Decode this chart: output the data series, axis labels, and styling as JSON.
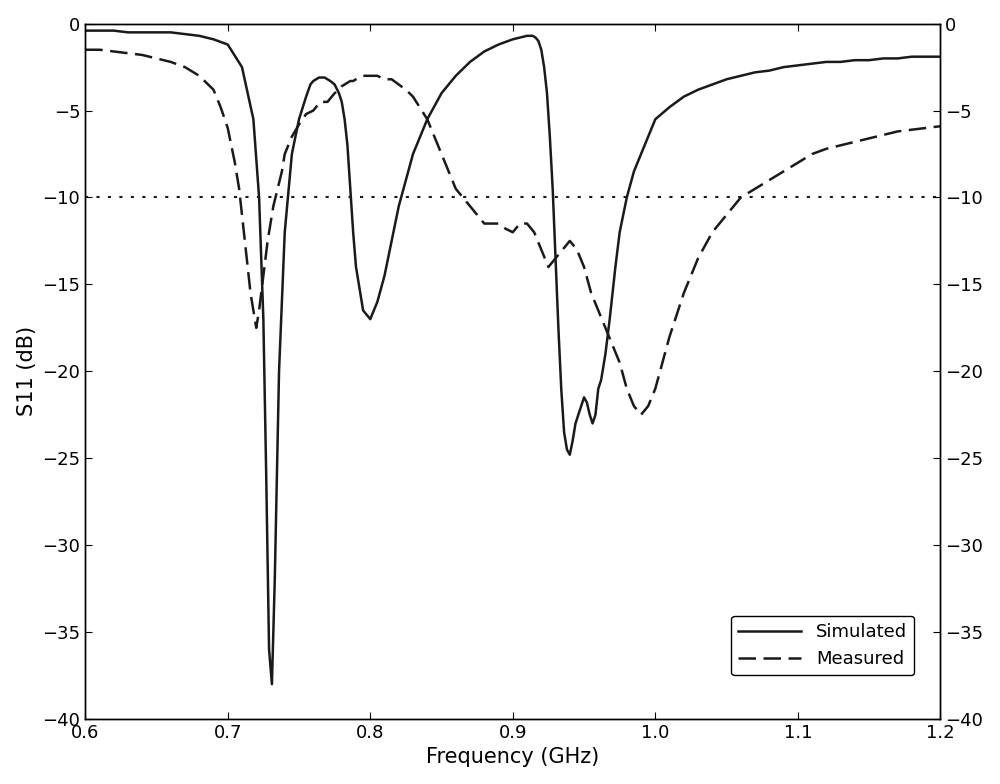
{
  "xlim": [
    0.6,
    1.2
  ],
  "ylim": [
    -40,
    0
  ],
  "xlabel": "Frequency (GHz)",
  "ylabel": "S11 (dB)",
  "hline_y": -10,
  "legend_labels": [
    "Simulated",
    "Measured"
  ],
  "simulated_x": [
    0.6,
    0.61,
    0.62,
    0.63,
    0.64,
    0.65,
    0.66,
    0.67,
    0.68,
    0.69,
    0.7,
    0.71,
    0.718,
    0.722,
    0.725,
    0.727,
    0.729,
    0.731,
    0.733,
    0.736,
    0.74,
    0.745,
    0.75,
    0.755,
    0.758,
    0.76,
    0.762,
    0.764,
    0.766,
    0.768,
    0.77,
    0.772,
    0.775,
    0.778,
    0.78,
    0.782,
    0.784,
    0.786,
    0.788,
    0.79,
    0.795,
    0.8,
    0.805,
    0.81,
    0.815,
    0.82,
    0.83,
    0.84,
    0.85,
    0.86,
    0.87,
    0.88,
    0.89,
    0.9,
    0.905,
    0.91,
    0.912,
    0.914,
    0.916,
    0.918,
    0.92,
    0.922,
    0.924,
    0.926,
    0.928,
    0.93,
    0.932,
    0.934,
    0.936,
    0.938,
    0.94,
    0.942,
    0.944,
    0.946,
    0.948,
    0.95,
    0.952,
    0.954,
    0.956,
    0.958,
    0.96,
    0.962,
    0.965,
    0.968,
    0.97,
    0.972,
    0.975,
    0.98,
    0.985,
    0.99,
    0.995,
    1.0,
    1.01,
    1.02,
    1.03,
    1.04,
    1.05,
    1.06,
    1.07,
    1.08,
    1.09,
    1.1,
    1.11,
    1.12,
    1.13,
    1.14,
    1.15,
    1.16,
    1.17,
    1.18,
    1.19,
    1.2
  ],
  "simulated_y": [
    -0.4,
    -0.4,
    -0.4,
    -0.5,
    -0.5,
    -0.5,
    -0.5,
    -0.6,
    -0.7,
    -0.9,
    -1.2,
    -2.5,
    -5.5,
    -10.0,
    -17.0,
    -26.0,
    -36.0,
    -38.0,
    -32.0,
    -20.0,
    -12.0,
    -7.5,
    -5.5,
    -4.2,
    -3.5,
    -3.3,
    -3.2,
    -3.1,
    -3.1,
    -3.1,
    -3.2,
    -3.3,
    -3.5,
    -4.0,
    -4.5,
    -5.5,
    -7.0,
    -9.5,
    -12.0,
    -14.0,
    -16.5,
    -17.0,
    -16.0,
    -14.5,
    -12.5,
    -10.5,
    -7.5,
    -5.5,
    -4.0,
    -3.0,
    -2.2,
    -1.6,
    -1.2,
    -0.9,
    -0.8,
    -0.7,
    -0.7,
    -0.7,
    -0.8,
    -1.0,
    -1.5,
    -2.5,
    -4.0,
    -6.5,
    -9.5,
    -13.5,
    -17.5,
    -21.0,
    -23.5,
    -24.5,
    -24.8,
    -24.0,
    -23.0,
    -22.5,
    -22.0,
    -21.5,
    -21.8,
    -22.5,
    -23.0,
    -22.5,
    -21.0,
    -20.5,
    -19.0,
    -17.0,
    -15.5,
    -14.0,
    -12.0,
    -10.0,
    -8.5,
    -7.5,
    -6.5,
    -5.5,
    -4.8,
    -4.2,
    -3.8,
    -3.5,
    -3.2,
    -3.0,
    -2.8,
    -2.7,
    -2.5,
    -2.4,
    -2.3,
    -2.2,
    -2.2,
    -2.1,
    -2.1,
    -2.0,
    -2.0,
    -1.9,
    -1.9,
    -1.9
  ],
  "measured_x": [
    0.6,
    0.61,
    0.62,
    0.63,
    0.64,
    0.65,
    0.66,
    0.67,
    0.68,
    0.69,
    0.695,
    0.7,
    0.705,
    0.708,
    0.71,
    0.712,
    0.714,
    0.716,
    0.718,
    0.72,
    0.722,
    0.725,
    0.728,
    0.73,
    0.732,
    0.735,
    0.738,
    0.74,
    0.745,
    0.75,
    0.755,
    0.76,
    0.765,
    0.77,
    0.775,
    0.778,
    0.78,
    0.782,
    0.784,
    0.786,
    0.788,
    0.79,
    0.795,
    0.8,
    0.805,
    0.81,
    0.815,
    0.82,
    0.825,
    0.83,
    0.84,
    0.85,
    0.86,
    0.87,
    0.875,
    0.88,
    0.885,
    0.89,
    0.895,
    0.9,
    0.905,
    0.91,
    0.915,
    0.92,
    0.925,
    0.93,
    0.935,
    0.94,
    0.945,
    0.95,
    0.955,
    0.96,
    0.965,
    0.97,
    0.975,
    0.98,
    0.985,
    0.99,
    0.995,
    1.0,
    1.005,
    1.01,
    1.02,
    1.03,
    1.04,
    1.05,
    1.06,
    1.07,
    1.08,
    1.09,
    1.1,
    1.11,
    1.12,
    1.13,
    1.14,
    1.15,
    1.16,
    1.17,
    1.18,
    1.19,
    1.2
  ],
  "measured_y": [
    -1.5,
    -1.5,
    -1.6,
    -1.7,
    -1.8,
    -2.0,
    -2.2,
    -2.5,
    -3.0,
    -3.8,
    -4.8,
    -6.0,
    -8.0,
    -9.5,
    -11.0,
    -12.5,
    -14.0,
    -15.5,
    -16.5,
    -17.5,
    -16.5,
    -14.5,
    -12.5,
    -11.5,
    -10.5,
    -9.5,
    -8.5,
    -7.5,
    -6.5,
    -5.8,
    -5.2,
    -5.0,
    -4.5,
    -4.5,
    -4.0,
    -3.8,
    -3.6,
    -3.5,
    -3.4,
    -3.3,
    -3.3,
    -3.2,
    -3.0,
    -3.0,
    -3.0,
    -3.2,
    -3.2,
    -3.5,
    -3.8,
    -4.2,
    -5.5,
    -7.5,
    -9.5,
    -10.5,
    -11.0,
    -11.5,
    -11.5,
    -11.5,
    -11.8,
    -12.0,
    -11.5,
    -11.5,
    -12.0,
    -13.0,
    -14.0,
    -13.5,
    -13.0,
    -12.5,
    -13.0,
    -14.0,
    -15.5,
    -16.5,
    -17.5,
    -18.5,
    -19.5,
    -21.0,
    -22.0,
    -22.5,
    -22.0,
    -21.0,
    -19.5,
    -18.0,
    -15.5,
    -13.5,
    -12.0,
    -11.0,
    -10.0,
    -9.5,
    -9.0,
    -8.5,
    -8.0,
    -7.5,
    -7.2,
    -7.0,
    -6.8,
    -6.6,
    -6.4,
    -6.2,
    -6.1,
    -6.0,
    -5.9
  ],
  "line_color": "#1a1a1a",
  "bg_color": "#ffffff",
  "tick_fontsize": 13,
  "label_fontsize": 15,
  "legend_fontsize": 13,
  "linewidth": 1.8
}
